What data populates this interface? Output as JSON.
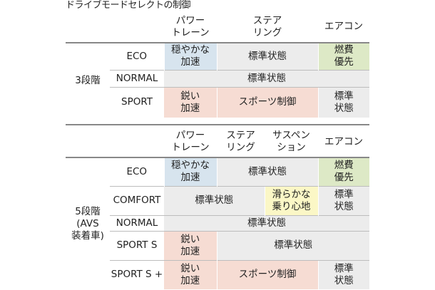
{
  "title": "ドライブモードセレクトの制御",
  "table1": {
    "headers": [
      "パワー\nトレーン",
      "ステア\nリング",
      "エアコン"
    ],
    "group_label": "3段階",
    "rows": [
      {
        "mode": "ECO",
        "powertrain": "穏やかな\n加速",
        "steering": "標準状態",
        "aircon": "燃費\n優先"
      },
      {
        "mode": "NORMAL",
        "all": "標準状態"
      },
      {
        "mode": "SPORT",
        "powertrain": "鋭い\n加速",
        "steering": "スポーツ制御",
        "aircon": "標準\n状態"
      }
    ]
  },
  "table2": {
    "headers": [
      "パワー\nトレーン",
      "ステア\nリング",
      "サスペン\nション",
      "エアコン"
    ],
    "group_label": "5段階\n(AVS\n装着車)",
    "rows": [
      {
        "mode": "ECO",
        "powertrain": "穏やかな\n加速",
        "rest": "標準状態",
        "aircon": "燃費\n優先"
      },
      {
        "mode": "COMFORT",
        "powertrain_steering": "標準状態",
        "suspension": "滑らかな\n乗り心地",
        "aircon": "標準\n状態"
      },
      {
        "mode": "NORMAL",
        "all": "標準状態"
      },
      {
        "mode": "SPORT S",
        "powertrain": "鋭い\n加速",
        "rest": "標準状態"
      },
      {
        "mode": "SPORT S +",
        "powertrain": "鋭い\n加速",
        "steering_suspension": "スポーツ制御",
        "aircon": "標準\n状態"
      }
    ]
  },
  "colors": {
    "gray": "#ececec",
    "blue": "#d7e4ee",
    "green": "#dde9c6",
    "yellow": "#fbf7c6",
    "pink": "#f6dcd3"
  }
}
